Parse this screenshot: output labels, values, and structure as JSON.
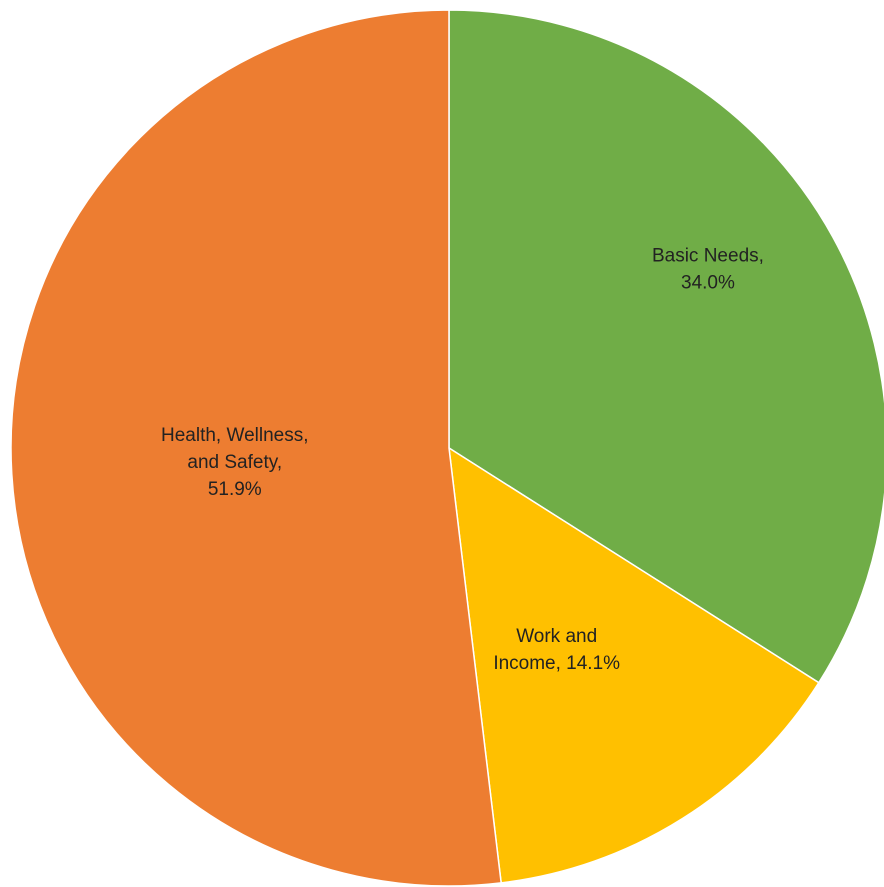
{
  "chart_data": {
    "type": "pie",
    "title": "",
    "start": "12 o'clock",
    "direction": "clockwise",
    "slices": [
      {
        "label": "Basic Needs",
        "value": 34.0,
        "display_lines": [
          "Basic Needs,",
          "34.0%"
        ],
        "color": "#70AD47"
      },
      {
        "label": "Work and Income",
        "value": 14.1,
        "display_lines": [
          "Work and",
          "Income, 14.1%"
        ],
        "color": "#FFC000"
      },
      {
        "label": "Health, Wellness, and Safety",
        "value": 51.9,
        "display_lines": [
          "Health, Wellness,",
          "and Safety,",
          "51.9%"
        ],
        "color": "#ED7D31"
      }
    ],
    "legend": "none",
    "grid": false
  }
}
